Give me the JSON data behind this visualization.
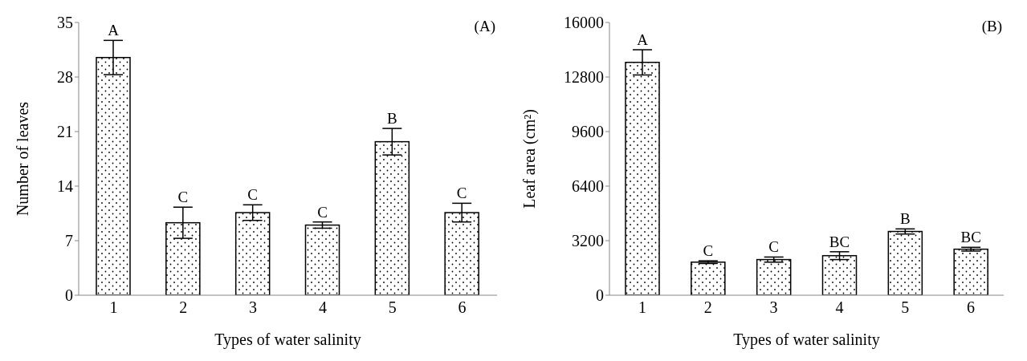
{
  "chart_data": [
    {
      "type": "bar",
      "xlabel": "Types of water salinity",
      "ylabel": "Number of leaves",
      "categories": [
        "1",
        "2",
        "3",
        "4",
        "5",
        "6"
      ],
      "values": [
        30.5,
        9.3,
        10.6,
        9.0,
        19.7,
        10.6
      ],
      "errors": [
        2.2,
        2.0,
        1.0,
        0.4,
        1.7,
        1.2
      ],
      "color": "#ffffff",
      "ylim": [
        0,
        35
      ],
      "yticks": [
        0,
        7,
        14,
        21,
        28,
        35
      ],
      "grid": false,
      "annotations": [
        "(A)",
        {
          "text": "A",
          "x": "1",
          "y": 30.5
        },
        {
          "text": "C",
          "x": "2",
          "y": 9.3
        },
        {
          "text": "C",
          "x": "3",
          "y": 10.6
        },
        {
          "text": "C",
          "x": "4",
          "y": 9.0
        },
        {
          "text": "B",
          "x": "5",
          "y": 19.7
        },
        {
          "text": "C",
          "x": "6",
          "y": 10.6
        }
      ]
    },
    {
      "type": "bar",
      "xlabel": "Types of water salinity",
      "ylabel": "Leaf area (cm²)",
      "categories": [
        "1",
        "2",
        "3",
        "4",
        "5",
        "6"
      ],
      "values": [
        13660,
        1940,
        2090,
        2320,
        3740,
        2700
      ],
      "errors": [
        740,
        80,
        150,
        230,
        150,
        110
      ],
      "color": "#ffffff",
      "ylim": [
        0,
        16000
      ],
      "yticks": [
        0,
        3200,
        6400,
        9600,
        12800,
        16000
      ],
      "grid": false,
      "annotations": [
        "(B)",
        {
          "text": "A",
          "x": "1",
          "y": 13660
        },
        {
          "text": "C",
          "x": "2",
          "y": 1940
        },
        {
          "text": "C",
          "x": "3",
          "y": 2090
        },
        {
          "text": "BC",
          "x": "4",
          "y": 2320
        },
        {
          "text": "B",
          "x": "5",
          "y": 3740
        },
        {
          "text": "BC",
          "x": "6",
          "y": 2700
        }
      ]
    }
  ]
}
